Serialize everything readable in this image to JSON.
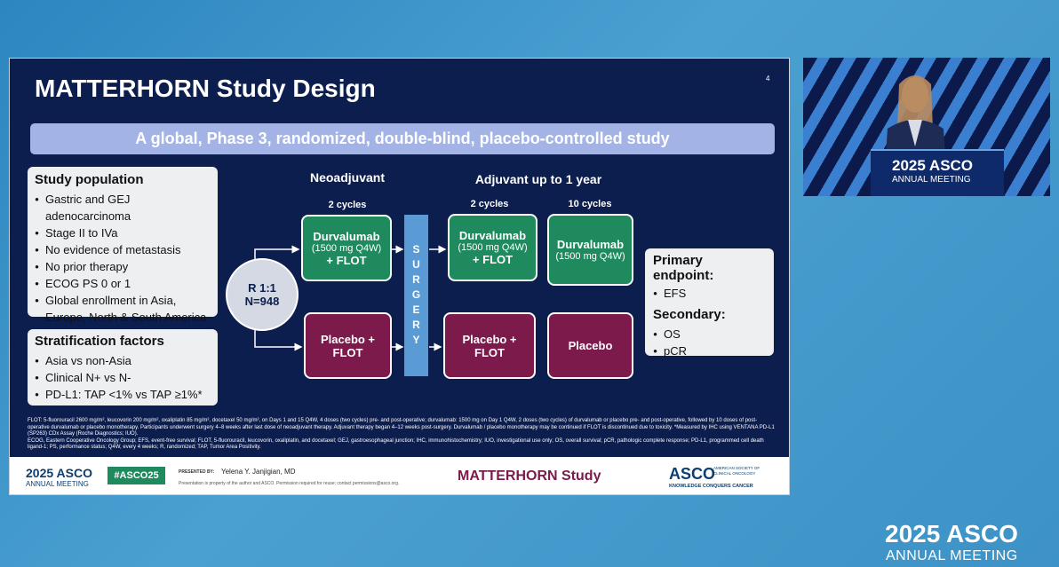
{
  "slide": {
    "page_number": "4",
    "title": "MATTERHORN Study Design",
    "banner": "A global, Phase 3, randomized, double-blind, placebo-controlled study",
    "population": {
      "heading": "Study population",
      "items": [
        "Gastric and GEJ adenocarcinoma",
        "Stage II to IVa",
        "No evidence of metastasis",
        "No prior therapy",
        "ECOG PS 0 or 1",
        "Global enrollment in Asia, Europe, North & South America"
      ]
    },
    "stratification": {
      "heading": "Stratification factors",
      "items": [
        "Asia vs non-Asia",
        "Clinical N+ vs N-",
        "PD-L1: TAP <1% vs TAP ≥1%*"
      ]
    },
    "randomization": {
      "ratio": "R 1:1",
      "n": "N=948"
    },
    "phases": {
      "neoadjuvant": "Neoadjuvant",
      "adjuvant": "Adjuvant up to 1 year"
    },
    "cycles": [
      "2 cycles",
      "2 cycles",
      "10 cycles"
    ],
    "arms": {
      "durvalumab": [
        {
          "name": "Durvalumab",
          "dose": "(1500 mg Q4W)",
          "combo": "+ FLOT"
        },
        {
          "name": "Durvalumab",
          "dose": "(1500 mg Q4W)",
          "combo": "+ FLOT"
        },
        {
          "name": "Durvalumab",
          "dose": "(1500 mg Q4W)"
        }
      ],
      "placebo": [
        "Placebo + FLOT",
        "Placebo + FLOT",
        "Placebo"
      ]
    },
    "surgery": "SURGERY",
    "endpoints": {
      "primary_heading": "Primary endpoint:",
      "primary": [
        "EFS"
      ],
      "secondary_heading": "Secondary:",
      "secondary": [
        "OS",
        "pCR"
      ]
    },
    "footnotes": [
      "FLOT: 5-fluorouracil 2600 mg/m², leucovorin 200 mg/m², oxaliplatin 85 mg/m², docetaxel 50 mg/m², on Days 1 and 15 Q4W, 4 doses (two cycles) pre- and post-operative; durvalumab: 1500 mg on Day 1 Q4W, 2 doses (two cycles) of durvalumab or placebo pre- and post-operative, followed by 10 doses of post-operative durvalumab or placebo monotherapy. Participants underwent surgery 4–8 weeks after last dose of neoadjuvant therapy. Adjuvant therapy began 4–12 weeks post-surgery. Durvalumab / placebo monotherapy may be continued if FLOT is discontinued due to toxicity. *Measured by IHC using VENTANA PD-L1 (SP263) CDx Assay (Roche Diagnostics; IUO).",
      "ECOG, Eastern Cooperative Oncology Group; EFS, event-free survival; FLOT, 5-fluorouracil, leucovorin, oxaliplatin, and docetaxel; GEJ, gastroesophageal junction; IHC, immunohistochemistry; IUO, investigational use only; OS, overall survival; pCR, pathologic complete response; PD-L1, programmed cell death ligand-1; PS, performance status; Q4W, every 4 weeks; R, randomized; TAP, Tumor Area Positivity."
    ],
    "footer": {
      "meeting_year": "2025 ASCO",
      "meeting_name": "ANNUAL MEETING",
      "hashtag": "#ASCO25",
      "presented_by": "PRESENTED BY:",
      "presenter": "Yelena Y. Janjigian, MD",
      "disclaimer": "Presentation is property of the author and ASCO. Permission required for reuse; contact permissions@asco.org.",
      "study": "MATTERHORN Study",
      "org": "ASCO",
      "org_full": "AMERICAN SOCIETY OF CLINICAL ONCOLOGY",
      "tagline": "KNOWLEDGE CONQUERS CANCER"
    }
  },
  "speaker_feed": {
    "podium_year": "2025 ASCO",
    "podium_name": "ANNUAL MEETING"
  },
  "watermark": {
    "year": "2025 ASCO",
    "name": "ANNUAL MEETING"
  }
}
